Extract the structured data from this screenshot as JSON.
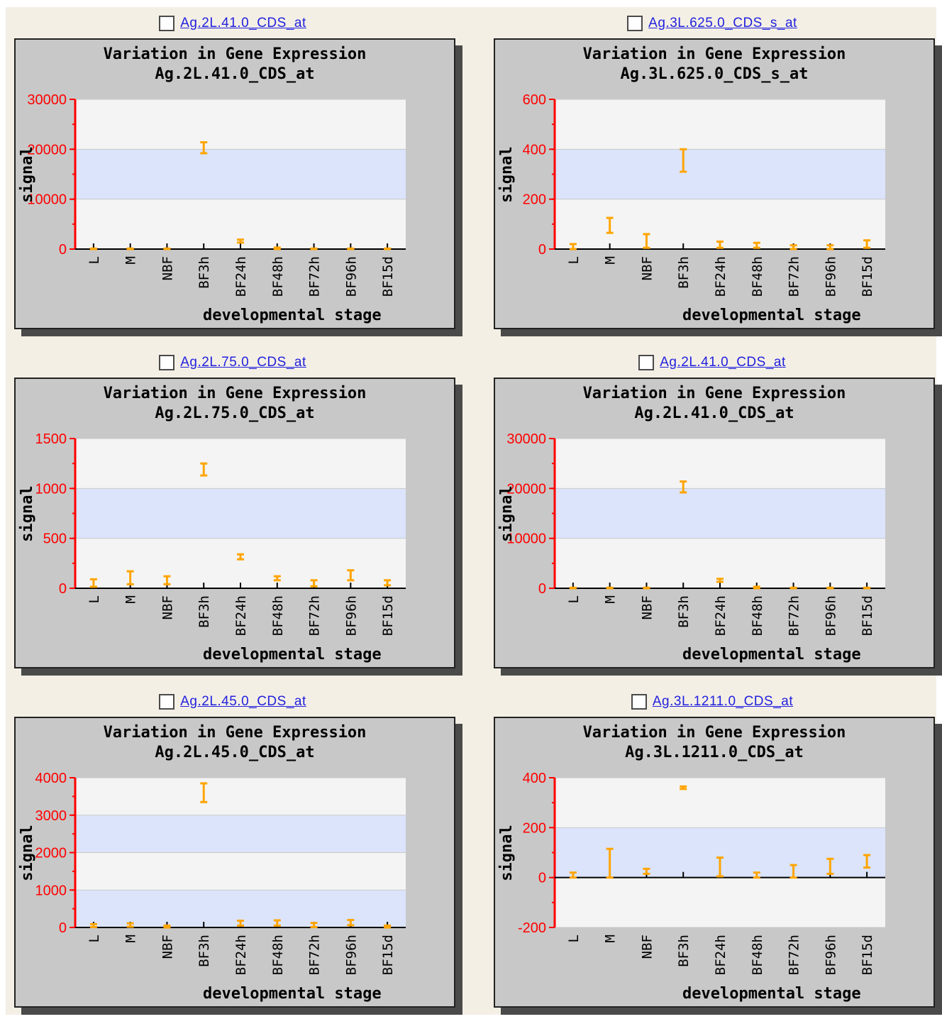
{
  "chart_data": [
    {
      "type": "scatter",
      "link": "Ag.2L.41.0_CDS_at",
      "title": "Variation in Gene Expression",
      "subtitle": "Ag.2L.41.0_CDS_at",
      "xlabel": "developmental stage",
      "ylabel": "signal",
      "categories": [
        "L",
        "M",
        "NBF",
        "BF3h",
        "BF24h",
        "BF48h",
        "BF72h",
        "BF96h",
        "BF15d"
      ],
      "ylim": [
        0,
        30000
      ],
      "yticks": [
        0,
        10000,
        20000,
        30000
      ],
      "ytick_labels": [
        "0",
        "10000",
        "20000",
        "30000"
      ],
      "series": [
        {
          "low": [
            0,
            0,
            0,
            19200,
            1300,
            0,
            0,
            0,
            0
          ],
          "high": [
            100,
            100,
            100,
            21400,
            1900,
            300,
            100,
            100,
            100
          ]
        }
      ]
    },
    {
      "type": "scatter",
      "link": "Ag.3L.625.0_CDS_s_at",
      "title": "Variation in Gene Expression",
      "subtitle": "Ag.3L.625.0_CDS_s_at",
      "xlabel": "developmental stage",
      "ylabel": "signal",
      "categories": [
        "L",
        "M",
        "NBF",
        "BF3h",
        "BF24h",
        "BF48h",
        "BF72h",
        "BF96h",
        "BF15d"
      ],
      "ylim": [
        0,
        600
      ],
      "yticks": [
        0,
        200,
        400,
        600
      ],
      "ytick_labels": [
        "0",
        "200",
        "400",
        "600"
      ],
      "series": [
        {
          "low": [
            0,
            65,
            5,
            310,
            5,
            5,
            0,
            0,
            5
          ],
          "high": [
            20,
            125,
            60,
            400,
            30,
            25,
            15,
            15,
            35
          ]
        }
      ]
    },
    {
      "type": "scatter",
      "link": "Ag.2L.75.0_CDS_at",
      "title": "Variation in Gene Expression",
      "subtitle": "Ag.2L.75.0_CDS_at",
      "xlabel": "developmental stage",
      "ylabel": "signal",
      "categories": [
        "L",
        "M",
        "NBF",
        "BF3h",
        "BF24h",
        "BF48h",
        "BF72h",
        "BF96h",
        "BF15d"
      ],
      "ylim": [
        0,
        1500
      ],
      "yticks": [
        0,
        500,
        1000,
        1500
      ],
      "ytick_labels": [
        "0",
        "500",
        "1000",
        "1500"
      ],
      "series": [
        {
          "low": [
            15,
            40,
            40,
            1130,
            290,
            80,
            20,
            80,
            30
          ],
          "high": [
            90,
            170,
            120,
            1250,
            340,
            120,
            80,
            180,
            80
          ]
        }
      ]
    },
    {
      "type": "scatter",
      "link": "Ag.2L.41.0_CDS_at",
      "title": "Variation in Gene Expression",
      "subtitle": "Ag.2L.41.0_CDS_at",
      "xlabel": "developmental stage",
      "ylabel": "signal",
      "categories": [
        "L",
        "M",
        "NBF",
        "BF3h",
        "BF24h",
        "BF48h",
        "BF72h",
        "BF96h",
        "BF15d"
      ],
      "ylim": [
        0,
        30000
      ],
      "yticks": [
        0,
        10000,
        20000,
        30000
      ],
      "ytick_labels": [
        "0",
        "10000",
        "20000",
        "30000"
      ],
      "series": [
        {
          "low": [
            0,
            0,
            0,
            19200,
            1300,
            0,
            0,
            0,
            0
          ],
          "high": [
            100,
            100,
            100,
            21400,
            1900,
            300,
            100,
            100,
            100
          ]
        }
      ]
    },
    {
      "type": "scatter",
      "link": "Ag.2L.45.0_CDS_at",
      "title": "Variation in Gene Expression",
      "subtitle": "Ag.2L.45.0_CDS_at",
      "xlabel": "developmental stage",
      "ylabel": "signal",
      "categories": [
        "L",
        "M",
        "NBF",
        "BF3h",
        "BF24h",
        "BF48h",
        "BF72h",
        "BF96h",
        "BF15d"
      ],
      "ylim": [
        0,
        4000
      ],
      "yticks": [
        0,
        1000,
        2000,
        3000,
        4000
      ],
      "ytick_labels": [
        "0",
        "1000",
        "2000",
        "3000",
        "4000"
      ],
      "series": [
        {
          "low": [
            10,
            20,
            0,
            3350,
            50,
            50,
            10,
            60,
            0
          ],
          "high": [
            90,
            110,
            50,
            3850,
            180,
            190,
            120,
            200,
            50
          ]
        }
      ]
    },
    {
      "type": "scatter",
      "link": "Ag.3L.1211.0_CDS_at",
      "title": "Variation in Gene Expression",
      "subtitle": "Ag.3L.1211.0_CDS_at",
      "xlabel": "developmental stage",
      "ylabel": "signal",
      "categories": [
        "L",
        "M",
        "NBF",
        "BF3h",
        "BF24h",
        "BF48h",
        "BF72h",
        "BF96h",
        "BF15d"
      ],
      "ylim": [
        -200,
        400
      ],
      "yticks": [
        -200,
        0,
        200,
        400
      ],
      "ytick_labels": [
        "-200",
        "0",
        "200",
        "400"
      ],
      "series": [
        {
          "low": [
            0,
            0,
            15,
            355,
            5,
            0,
            0,
            15,
            40
          ],
          "high": [
            20,
            115,
            35,
            365,
            80,
            20,
            50,
            75,
            90
          ]
        }
      ]
    }
  ]
}
